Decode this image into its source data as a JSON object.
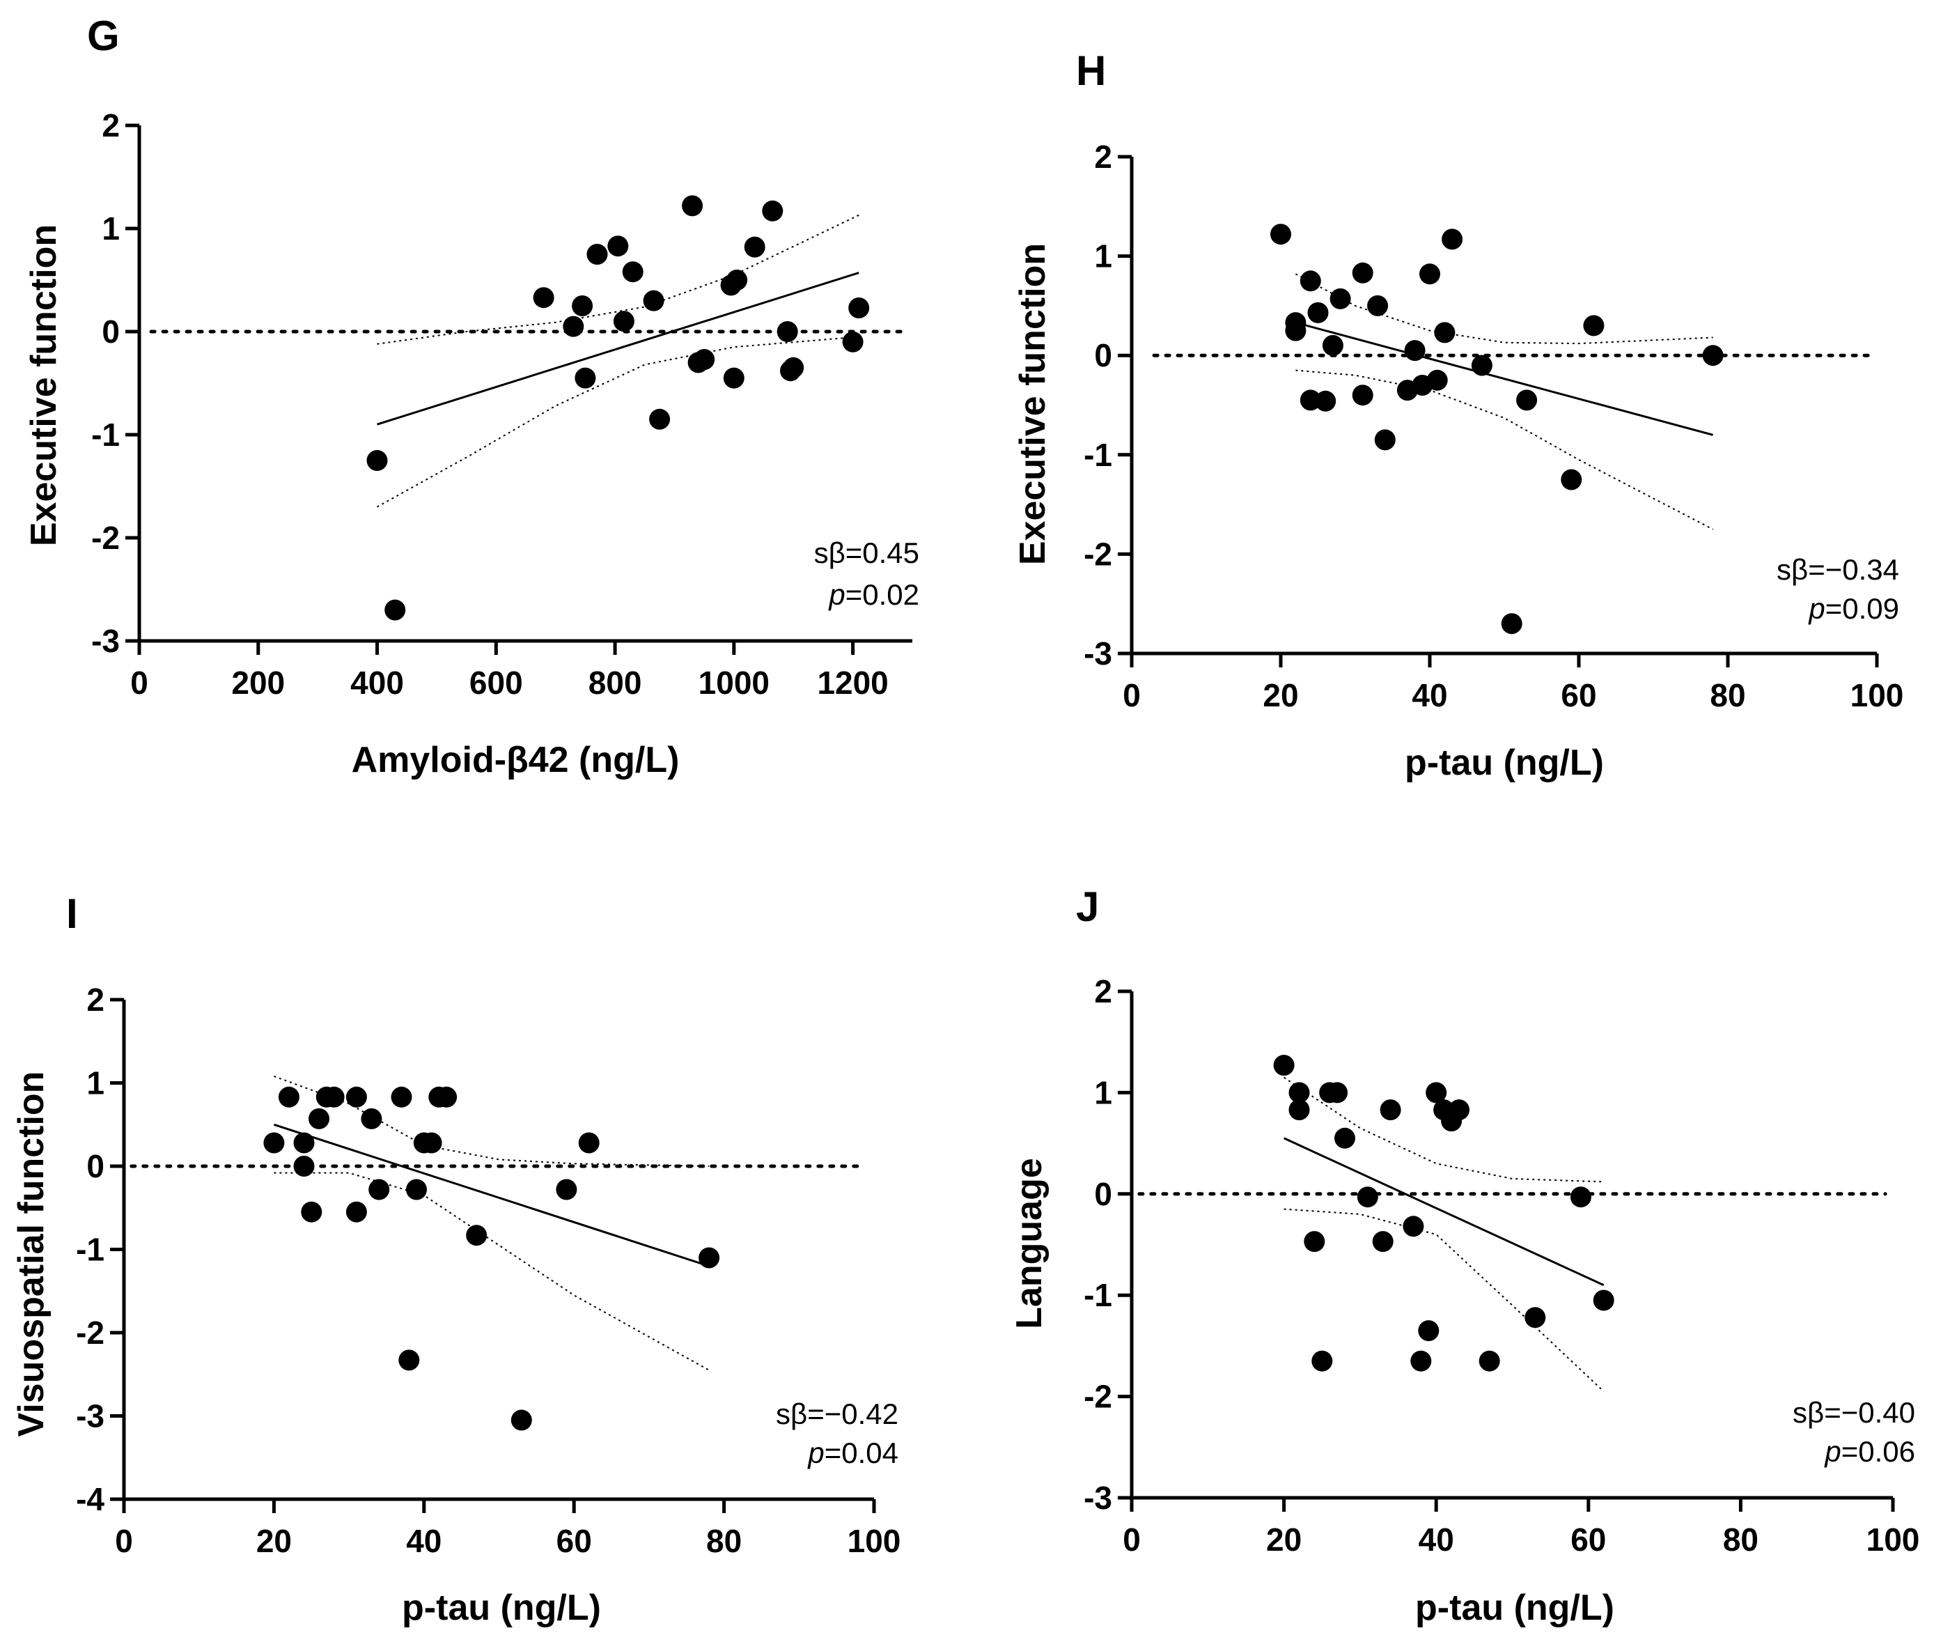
{
  "chart_data": [
    {
      "type": "scatter",
      "panel": "G",
      "xlabel": "Amyloid-β42 (ng/L)",
      "ylabel": "Executive function",
      "xlim": [
        0,
        1300
      ],
      "ylim": [
        -3,
        2
      ],
      "xticks": [
        0,
        200,
        400,
        600,
        800,
        1000,
        1200
      ],
      "yticks": [
        2,
        1,
        0,
        -1,
        -2,
        -3
      ],
      "stat_beta": "sβ=0.45",
      "stat_p_label": "p",
      "stat_p_value": "=0.02",
      "points": [
        [
          400,
          -1.25
        ],
        [
          430,
          -2.7
        ],
        [
          680,
          0.33
        ],
        [
          730,
          0.05
        ],
        [
          745,
          0.25
        ],
        [
          750,
          -0.45
        ],
        [
          770,
          0.75
        ],
        [
          805,
          0.83
        ],
        [
          815,
          0.1
        ],
        [
          830,
          0.58
        ],
        [
          865,
          0.3
        ],
        [
          875,
          -0.85
        ],
        [
          930,
          1.22
        ],
        [
          940,
          -0.3
        ],
        [
          950,
          -0.27
        ],
        [
          995,
          0.45
        ],
        [
          1000,
          -0.45
        ],
        [
          1005,
          0.5
        ],
        [
          1035,
          0.82
        ],
        [
          1065,
          1.17
        ],
        [
          1090,
          0.0
        ],
        [
          1095,
          -0.38
        ],
        [
          1100,
          -0.35
        ],
        [
          1200,
          -0.1
        ],
        [
          1210,
          0.23
        ]
      ],
      "fit": [
        [
          400,
          -0.9
        ],
        [
          1210,
          0.57
        ]
      ],
      "ci_upper": [
        [
          400,
          -0.12
        ],
        [
          550,
          0.0
        ],
        [
          700,
          0.09
        ],
        [
          850,
          0.24
        ],
        [
          1000,
          0.55
        ],
        [
          1210,
          1.13
        ]
      ],
      "ci_lower": [
        [
          400,
          -1.7
        ],
        [
          550,
          -1.22
        ],
        [
          700,
          -0.72
        ],
        [
          850,
          -0.32
        ],
        [
          1000,
          -0.15
        ],
        [
          1210,
          -0.05
        ]
      ],
      "ref_line": [
        [
          20,
          0
        ],
        [
          1290,
          0
        ]
      ]
    },
    {
      "type": "scatter",
      "panel": "H",
      "xlabel": "p-tau (ng/L)",
      "ylabel": "Executive function",
      "xlim": [
        0,
        100
      ],
      "ylim": [
        -3,
        2
      ],
      "xticks": [
        0,
        20,
        40,
        60,
        80,
        100
      ],
      "yticks": [
        2,
        1,
        0,
        -1,
        -2,
        -3
      ],
      "stat_beta": "sβ=−0.34",
      "stat_p_label": "p",
      "stat_p_value": "=0.09",
      "points": [
        [
          20,
          1.22
        ],
        [
          22,
          0.33
        ],
        [
          22,
          0.25
        ],
        [
          24,
          0.75
        ],
        [
          24,
          -0.45
        ],
        [
          25,
          0.43
        ],
        [
          26,
          -0.46
        ],
        [
          27,
          0.1
        ],
        [
          28,
          0.57
        ],
        [
          31,
          0.83
        ],
        [
          31,
          -0.4
        ],
        [
          33,
          0.5
        ],
        [
          34,
          -0.85
        ],
        [
          37,
          -0.35
        ],
        [
          38,
          0.05
        ],
        [
          39,
          -0.3
        ],
        [
          40,
          0.82
        ],
        [
          41,
          -0.25
        ],
        [
          42,
          0.23
        ],
        [
          43,
          1.17
        ],
        [
          47,
          -0.1
        ],
        [
          51,
          -2.7
        ],
        [
          53,
          -0.45
        ],
        [
          59,
          -1.25
        ],
        [
          62,
          0.3
        ],
        [
          78,
          0.0
        ]
      ],
      "fit": [
        [
          22,
          0.33
        ],
        [
          78,
          -0.8
        ]
      ],
      "ci_upper": [
        [
          22,
          0.82
        ],
        [
          30,
          0.5
        ],
        [
          40,
          0.25
        ],
        [
          50,
          0.13
        ],
        [
          60,
          0.12
        ],
        [
          78,
          0.18
        ]
      ],
      "ci_lower": [
        [
          22,
          -0.15
        ],
        [
          30,
          -0.2
        ],
        [
          40,
          -0.35
        ],
        [
          50,
          -0.63
        ],
        [
          60,
          -1.05
        ],
        [
          78,
          -1.75
        ]
      ],
      "ref_line": [
        [
          3,
          0
        ],
        [
          99,
          0
        ]
      ]
    },
    {
      "type": "scatter",
      "panel": "I",
      "xlabel": "p-tau (ng/L)",
      "ylabel": "Visuospatial function",
      "xlim": [
        0,
        100
      ],
      "ylim": [
        -4,
        2
      ],
      "xticks": [
        0,
        20,
        40,
        60,
        80,
        100
      ],
      "yticks": [
        2,
        1,
        0,
        -1,
        -2,
        -3,
        -4
      ],
      "stat_beta": "sβ=−0.42",
      "stat_p_label": "p",
      "stat_p_value": "=0.04",
      "points": [
        [
          20,
          0.28
        ],
        [
          22,
          0.83
        ],
        [
          24,
          0.28
        ],
        [
          24,
          0.0
        ],
        [
          25,
          -0.55
        ],
        [
          26,
          0.57
        ],
        [
          27,
          0.83
        ],
        [
          28,
          0.83
        ],
        [
          31,
          0.83
        ],
        [
          31,
          -0.55
        ],
        [
          33,
          0.57
        ],
        [
          34,
          -0.28
        ],
        [
          37,
          0.83
        ],
        [
          38,
          -2.33
        ],
        [
          39,
          -0.28
        ],
        [
          40,
          0.28
        ],
        [
          41,
          0.28
        ],
        [
          42,
          0.83
        ],
        [
          43,
          0.83
        ],
        [
          47,
          -0.83
        ],
        [
          53,
          -3.05
        ],
        [
          59,
          -0.28
        ],
        [
          62,
          0.28
        ],
        [
          78,
          -1.1
        ]
      ],
      "fit": [
        [
          20,
          0.5
        ],
        [
          78,
          -1.2
        ]
      ],
      "ci_upper": [
        [
          20,
          1.08
        ],
        [
          30,
          0.75
        ],
        [
          40,
          0.25
        ],
        [
          50,
          0.08
        ],
        [
          60,
          0.03
        ],
        [
          78,
          0.0
        ]
      ],
      "ci_lower": [
        [
          20,
          -0.08
        ],
        [
          30,
          -0.08
        ],
        [
          40,
          -0.35
        ],
        [
          50,
          -0.95
        ],
        [
          60,
          -1.55
        ],
        [
          78,
          -2.45
        ]
      ],
      "ref_line": [
        [
          1,
          0
        ],
        [
          98,
          0
        ]
      ]
    },
    {
      "type": "scatter",
      "panel": "J",
      "xlabel": "p-tau (ng/L)",
      "ylabel": "Language",
      "xlim": [
        0,
        100
      ],
      "ylim": [
        -3,
        2
      ],
      "xticks": [
        0,
        20,
        40,
        60,
        80,
        100
      ],
      "yticks": [
        2,
        1,
        0,
        -1,
        -2,
        -3
      ],
      "stat_beta": "sβ=−0.40",
      "stat_p_label": "p",
      "stat_p_value": "=0.06",
      "points": [
        [
          20,
          1.27
        ],
        [
          22,
          1.0
        ],
        [
          22,
          0.83
        ],
        [
          24,
          -0.47
        ],
        [
          25,
          -1.65
        ],
        [
          26,
          1.0
        ],
        [
          27,
          1.0
        ],
        [
          28,
          0.55
        ],
        [
          31,
          -0.03
        ],
        [
          33,
          -0.47
        ],
        [
          34,
          0.83
        ],
        [
          37,
          -0.32
        ],
        [
          38,
          -1.65
        ],
        [
          39,
          -1.35
        ],
        [
          40,
          1.0
        ],
        [
          41,
          0.83
        ],
        [
          42,
          0.72
        ],
        [
          43,
          0.83
        ],
        [
          47,
          -1.65
        ],
        [
          53,
          -1.22
        ],
        [
          59,
          -0.03
        ],
        [
          62,
          -1.05
        ]
      ],
      "fit": [
        [
          20,
          0.55
        ],
        [
          62,
          -0.9
        ]
      ],
      "ci_upper": [
        [
          20,
          1.15
        ],
        [
          30,
          0.65
        ],
        [
          40,
          0.3
        ],
        [
          50,
          0.15
        ],
        [
          62,
          0.12
        ]
      ],
      "ci_lower": [
        [
          20,
          -0.15
        ],
        [
          30,
          -0.2
        ],
        [
          40,
          -0.4
        ],
        [
          50,
          -1.1
        ],
        [
          62,
          -1.95
        ]
      ],
      "ref_line": [
        [
          1,
          0
        ],
        [
          99,
          0
        ]
      ]
    }
  ]
}
